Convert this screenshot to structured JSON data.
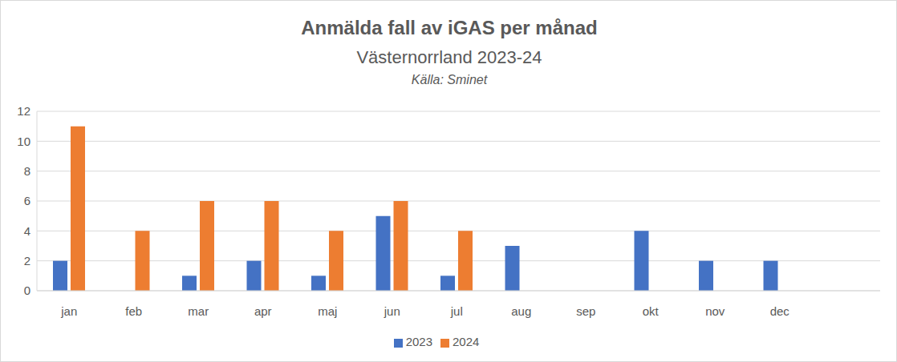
{
  "chart_data": {
    "type": "bar",
    "title": "Anmälda fall av iGAS per månad",
    "subtitle": "Västernorrland 2023-24",
    "annotation": "Källa: Sminet",
    "categories": [
      "jan",
      "feb",
      "mar",
      "apr",
      "maj",
      "jun",
      "jul",
      "aug",
      "sep",
      "okt",
      "nov",
      "dec"
    ],
    "series": [
      {
        "name": "2023",
        "color": "#4472c4",
        "values": [
          2,
          0,
          1,
          2,
          1,
          5,
          1,
          3,
          0,
          4,
          2,
          2
        ]
      },
      {
        "name": "2024",
        "color": "#ed7d31",
        "values": [
          11,
          4,
          6,
          6,
          4,
          6,
          4,
          null,
          null,
          null,
          null,
          null
        ]
      }
    ],
    "ylim": [
      0,
      12
    ],
    "yticks": [
      0,
      2,
      4,
      6,
      8,
      10,
      12
    ],
    "grid": true,
    "legend": "bottom"
  }
}
